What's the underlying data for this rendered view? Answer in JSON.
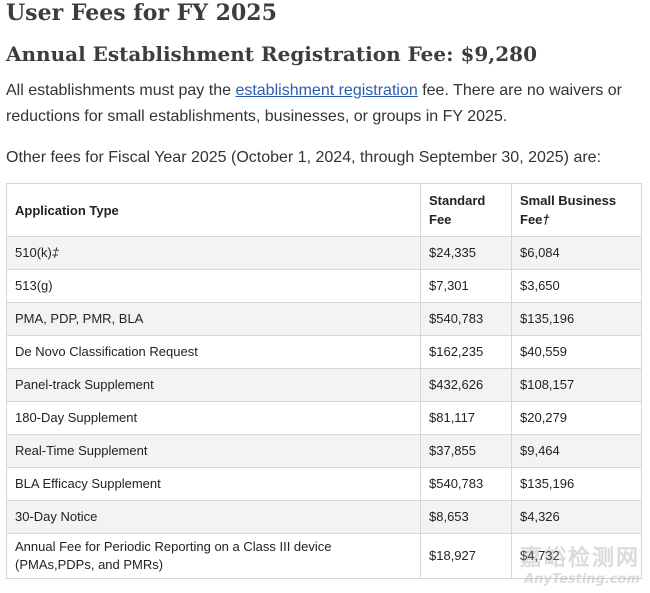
{
  "title": "User Fees for FY 2025",
  "subtitle": "Annual Establishment Registration Fee: $9,280",
  "intro": {
    "before_link": "All establishments must pay the ",
    "link_text": "establishment registration",
    "after_link": " fee. There are no waivers or reductions for small establishments, businesses, or groups in FY 2025."
  },
  "other_fees_text": "Other fees for Fiscal Year 2025 (October 1, 2024, through September 30, 2025) are:",
  "table": {
    "headers": {
      "application_type": "Application Type",
      "standard_fee": "Standard Fee",
      "small_business_fee": "Small Business Fee",
      "small_business_mark": "†"
    },
    "rows": [
      {
        "type": "510(k)",
        "mark": "‡",
        "standard": "$24,335",
        "small": "$6,084"
      },
      {
        "type": "513(g)",
        "mark": "",
        "standard": "$7,301",
        "small": "$3,650"
      },
      {
        "type": "PMA, PDP, PMR, BLA",
        "mark": "",
        "standard": "$540,783",
        "small": "$135,196"
      },
      {
        "type": "De Novo Classification Request",
        "mark": "",
        "standard": "$162,235",
        "small": "$40,559"
      },
      {
        "type": "Panel-track Supplement",
        "mark": "",
        "standard": "$432,626",
        "small": "$108,157"
      },
      {
        "type": "180-Day Supplement",
        "mark": "",
        "standard": "$81,117",
        "small": "$20,279"
      },
      {
        "type": "Real-Time Supplement",
        "mark": "",
        "standard": "$37,855",
        "small": "$9,464"
      },
      {
        "type": "BLA Efficacy Supplement",
        "mark": "",
        "standard": "$540,783",
        "small": "$135,196"
      },
      {
        "type": "30-Day Notice",
        "mark": "",
        "standard": "$8,653",
        "small": "$4,326"
      },
      {
        "type": "Annual Fee for Periodic Reporting on a Class III device (PMAs,PDPs, and PMRs)",
        "mark": "",
        "standard": "$18,927",
        "small": "$4,732"
      }
    ]
  },
  "watermark": {
    "cn": "嘉峪检测网",
    "en": "AnyTesting.com"
  }
}
